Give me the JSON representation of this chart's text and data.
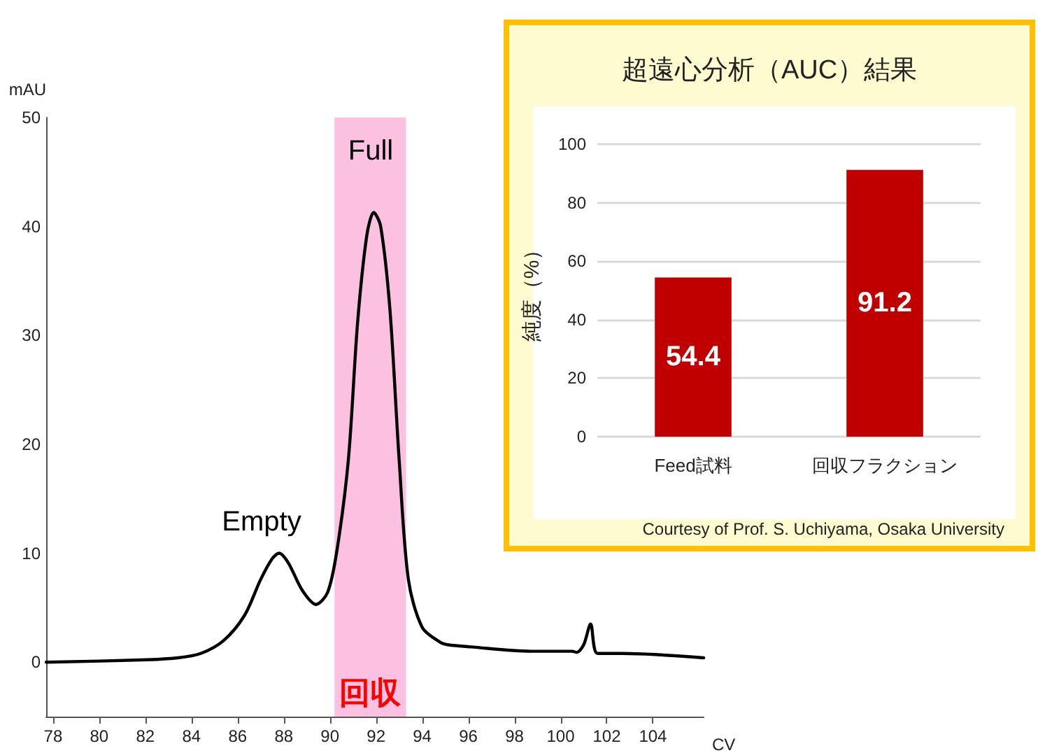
{
  "chart_data": [
    {
      "type": "line",
      "xlabel": "CV",
      "ylabel": "mAU",
      "xlim": [
        77.7,
        106.2
      ],
      "ylim": [
        -5,
        50
      ],
      "xticks": [
        78,
        80,
        82,
        84,
        86,
        88,
        90,
        92,
        94,
        96,
        98,
        100,
        102,
        104
      ],
      "yticks": [
        0,
        10,
        20,
        30,
        40,
        50
      ],
      "grid": false,
      "marker": "none",
      "line_style": "solid",
      "bands": [
        {
          "axis": "x",
          "from": 90.2,
          "to": 93.3,
          "label": "回収",
          "color": "#fcc0e0"
        }
      ],
      "annotations": [
        "Full",
        "Empty"
      ],
      "series": [
        {
          "color": "#000000",
          "x": [
            77.7,
            81.8,
            83.4,
            84.4,
            85.4,
            86.3,
            87.0,
            87.5,
            87.8,
            88.2,
            88.8,
            89.4,
            89.9,
            90.3,
            90.8,
            91.2,
            91.6,
            91.9,
            92.2,
            92.6,
            93.0,
            93.4,
            94.0,
            94.8,
            95.1,
            96.1,
            98.7,
            100.5,
            100.7,
            101.0,
            101.3,
            101.6,
            102.7,
            106.2
          ],
          "values": [
            0,
            0.2,
            0.4,
            0.8,
            2.0,
            4.3,
            7.6,
            9.5,
            10.0,
            9.1,
            6.6,
            5.3,
            6.4,
            10.2,
            18.6,
            31.2,
            39.2,
            41.3,
            40.0,
            32.4,
            18.6,
            7.6,
            3.2,
            1.8,
            1.6,
            1.4,
            1.0,
            1.0,
            0.9,
            1.6,
            3.5,
            0.8,
            0.8,
            0.4
          ]
        }
      ]
    },
    {
      "type": "bar",
      "title": "超遠心分析（AUC）結果",
      "ylabel": "純度（%）",
      "categories": [
        "Feed試料",
        "回収フラクション"
      ],
      "values": [
        54.4,
        91.2
      ],
      "color": "#c00000",
      "ylim": [
        0,
        100
      ],
      "yticks": [
        0,
        20,
        40,
        60,
        80,
        100
      ],
      "grid": "y",
      "data_labels": true,
      "annotations": [
        "Courtesy of Prof. S. Uchiyama, Osaka University"
      ]
    }
  ]
}
